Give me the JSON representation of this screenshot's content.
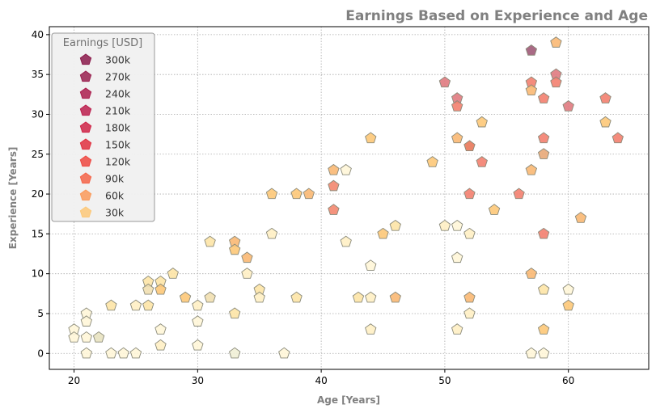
{
  "chart_data": {
    "type": "scatter",
    "title": "Earnings Based on Experience and Age",
    "xlabel": "Age [Years]",
    "ylabel": "Experience [Years]",
    "xlim": [
      18,
      66.5
    ],
    "ylim": [
      -2,
      41
    ],
    "xticks": [
      20,
      30,
      40,
      50,
      60
    ],
    "yticks": [
      0,
      5,
      10,
      15,
      20,
      25,
      30,
      35,
      40
    ],
    "grid": true,
    "marker": "pentagon",
    "legend": {
      "title": "Earnings [USD]",
      "position": "top-left",
      "entries": [
        {
          "label": "300k",
          "color": "#8b1a4b"
        },
        {
          "label": "270k",
          "color": "#99214f"
        },
        {
          "label": "240k",
          "color": "#ab1f4e"
        },
        {
          "label": "210k",
          "color": "#bc1f4e"
        },
        {
          "label": "180k",
          "color": "#cf2346"
        },
        {
          "label": "150k",
          "color": "#e0303f"
        },
        {
          "label": "120k",
          "color": "#ee4841"
        },
        {
          "label": "90k",
          "color": "#f56448"
        },
        {
          "label": "60k",
          "color": "#fa9a5a"
        },
        {
          "label": "30k",
          "color": "#fdc878"
        }
      ]
    },
    "points": [
      {
        "age": 20,
        "exp": 3,
        "color": "#fff6d8"
      },
      {
        "age": 20,
        "exp": 2,
        "color": "#fff6d8"
      },
      {
        "age": 21,
        "exp": 5,
        "color": "#fff6d8"
      },
      {
        "age": 21,
        "exp": 4,
        "color": "#fff6d8"
      },
      {
        "age": 21,
        "exp": 2,
        "color": "#fff6d8"
      },
      {
        "age": 21,
        "exp": 0,
        "color": "#fff6d8"
      },
      {
        "age": 22,
        "exp": 2,
        "color": "#e8e2c0"
      },
      {
        "age": 23,
        "exp": 6,
        "color": "#fde4a6"
      },
      {
        "age": 23,
        "exp": 0,
        "color": "#fff6d8"
      },
      {
        "age": 24,
        "exp": 0,
        "color": "#fff6d8"
      },
      {
        "age": 25,
        "exp": 6,
        "color": "#fff0c4"
      },
      {
        "age": 25,
        "exp": 0,
        "color": "#fff6d8"
      },
      {
        "age": 26,
        "exp": 9,
        "color": "#fde4a6"
      },
      {
        "age": 26,
        "exp": 8,
        "color": "#f1dfb0"
      },
      {
        "age": 26,
        "exp": 6,
        "color": "#fde4a6"
      },
      {
        "age": 27,
        "exp": 9,
        "color": "#fde4a6"
      },
      {
        "age": 27,
        "exp": 8,
        "color": "#fdc878"
      },
      {
        "age": 27,
        "exp": 3,
        "color": "#fff6d8"
      },
      {
        "age": 27,
        "exp": 1,
        "color": "#fff0c4"
      },
      {
        "age": 28,
        "exp": 10,
        "color": "#fde4a6"
      },
      {
        "age": 29,
        "exp": 7,
        "color": "#fdc878"
      },
      {
        "age": 30,
        "exp": 6,
        "color": "#fff0c4"
      },
      {
        "age": 30,
        "exp": 4,
        "color": "#fff6d8"
      },
      {
        "age": 30,
        "exp": 1,
        "color": "#fff6d8"
      },
      {
        "age": 31,
        "exp": 14,
        "color": "#fde4a6"
      },
      {
        "age": 31,
        "exp": 7,
        "color": "#f1dfb0"
      },
      {
        "age": 33,
        "exp": 14,
        "color": "#fab873"
      },
      {
        "age": 33,
        "exp": 13,
        "color": "#fdc878"
      },
      {
        "age": 33,
        "exp": 5,
        "color": "#fde4a6"
      },
      {
        "age": 33,
        "exp": 0,
        "color": "#f1efd6"
      },
      {
        "age": 34,
        "exp": 12,
        "color": "#fab873"
      },
      {
        "age": 34,
        "exp": 10,
        "color": "#fff0c4"
      },
      {
        "age": 35,
        "exp": 8,
        "color": "#fde4a6"
      },
      {
        "age": 35,
        "exp": 7,
        "color": "#fff0c4"
      },
      {
        "age": 36,
        "exp": 20,
        "color": "#fdc878"
      },
      {
        "age": 36,
        "exp": 15,
        "color": "#fff0c4"
      },
      {
        "age": 37,
        "exp": 0,
        "color": "#fff6d8"
      },
      {
        "age": 38,
        "exp": 20,
        "color": "#fdc878"
      },
      {
        "age": 38,
        "exp": 7,
        "color": "#fde4a6"
      },
      {
        "age": 39,
        "exp": 20,
        "color": "#fab873"
      },
      {
        "age": 41,
        "exp": 23,
        "color": "#fab873"
      },
      {
        "age": 41,
        "exp": 21,
        "color": "#f3876f"
      },
      {
        "age": 41,
        "exp": 18,
        "color": "#f3876f"
      },
      {
        "age": 42,
        "exp": 23,
        "color": "#fff6d8"
      },
      {
        "age": 42,
        "exp": 14,
        "color": "#fff0c4"
      },
      {
        "age": 43,
        "exp": 7,
        "color": "#fde4a6"
      },
      {
        "age": 44,
        "exp": 27,
        "color": "#fdc878"
      },
      {
        "age": 44,
        "exp": 11,
        "color": "#fff6d8"
      },
      {
        "age": 44,
        "exp": 7,
        "color": "#fff0c4"
      },
      {
        "age": 44,
        "exp": 3,
        "color": "#fff0c4"
      },
      {
        "age": 45,
        "exp": 15,
        "color": "#fdc878"
      },
      {
        "age": 46,
        "exp": 16,
        "color": "#fde4a6"
      },
      {
        "age": 46,
        "exp": 7,
        "color": "#fab873"
      },
      {
        "age": 49,
        "exp": 24,
        "color": "#fdc878"
      },
      {
        "age": 50,
        "exp": 34,
        "color": "#e07a80"
      },
      {
        "age": 50,
        "exp": 16,
        "color": "#fff0c4"
      },
      {
        "age": 51,
        "exp": 32,
        "color": "#e07a80"
      },
      {
        "age": 51,
        "exp": 31,
        "color": "#f3806f"
      },
      {
        "age": 51,
        "exp": 27,
        "color": "#fab873"
      },
      {
        "age": 51,
        "exp": 16,
        "color": "#fff6d8"
      },
      {
        "age": 51,
        "exp": 12,
        "color": "#fff6d8"
      },
      {
        "age": 51,
        "exp": 3,
        "color": "#fff0c4"
      },
      {
        "age": 52,
        "exp": 26,
        "color": "#e8785a"
      },
      {
        "age": 52,
        "exp": 20,
        "color": "#f3806f"
      },
      {
        "age": 52,
        "exp": 15,
        "color": "#fff0c4"
      },
      {
        "age": 52,
        "exp": 7,
        "color": "#fab873"
      },
      {
        "age": 52,
        "exp": 5,
        "color": "#fff0c4"
      },
      {
        "age": 53,
        "exp": 29,
        "color": "#fdc878"
      },
      {
        "age": 53,
        "exp": 24,
        "color": "#f3806f"
      },
      {
        "age": 54,
        "exp": 18,
        "color": "#fdc878"
      },
      {
        "age": 56,
        "exp": 20,
        "color": "#f3806f"
      },
      {
        "age": 57,
        "exp": 38,
        "color": "#a05a78"
      },
      {
        "age": 57,
        "exp": 34,
        "color": "#f3806f"
      },
      {
        "age": 57,
        "exp": 33,
        "color": "#fab873"
      },
      {
        "age": 57,
        "exp": 23,
        "color": "#fab873"
      },
      {
        "age": 57,
        "exp": 10,
        "color": "#fab873"
      },
      {
        "age": 57,
        "exp": 0,
        "color": "#fff6d8"
      },
      {
        "age": 58,
        "exp": 32,
        "color": "#f3806f"
      },
      {
        "age": 58,
        "exp": 27,
        "color": "#f3806f"
      },
      {
        "age": 58,
        "exp": 25,
        "color": "#e8a878"
      },
      {
        "age": 58,
        "exp": 15,
        "color": "#f3806f"
      },
      {
        "age": 58,
        "exp": 8,
        "color": "#fde4a6"
      },
      {
        "age": 58,
        "exp": 3,
        "color": "#fdc878"
      },
      {
        "age": 58,
        "exp": 0,
        "color": "#fff6d8"
      },
      {
        "age": 59,
        "exp": 39,
        "color": "#fab873"
      },
      {
        "age": 59,
        "exp": 35,
        "color": "#e07a80"
      },
      {
        "age": 59,
        "exp": 34,
        "color": "#f3806f"
      },
      {
        "age": 60,
        "exp": 31,
        "color": "#e07a80"
      },
      {
        "age": 60,
        "exp": 8,
        "color": "#fff6d8"
      },
      {
        "age": 60,
        "exp": 6,
        "color": "#fdc878"
      },
      {
        "age": 61,
        "exp": 17,
        "color": "#fab873"
      },
      {
        "age": 63,
        "exp": 32,
        "color": "#f3806f"
      },
      {
        "age": 63,
        "exp": 29,
        "color": "#fdc878"
      },
      {
        "age": 64,
        "exp": 27,
        "color": "#f3806f"
      }
    ]
  }
}
